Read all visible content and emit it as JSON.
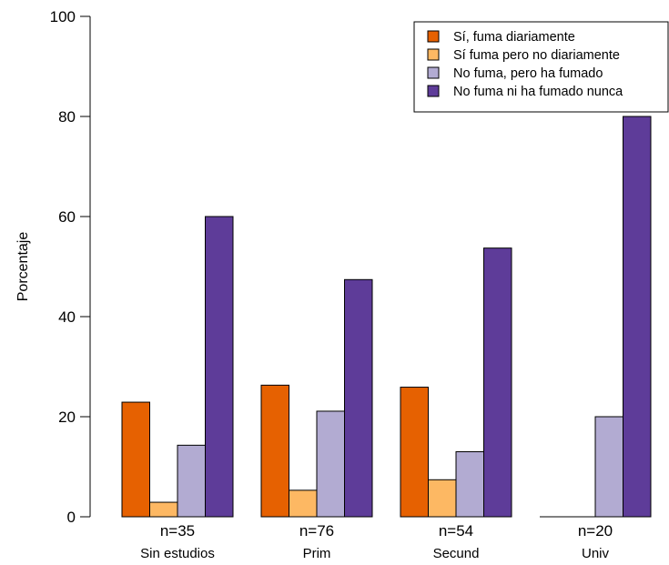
{
  "chart_data": {
    "type": "bar",
    "ylabel": "Porcentaje",
    "ylim": [
      0,
      100
    ],
    "yticks": [
      0,
      20,
      40,
      60,
      80,
      100
    ],
    "categories": [
      "Sin estudios",
      "Prim",
      "Secund",
      "Univ"
    ],
    "n_labels": [
      "n=35",
      "n=76",
      "n=54",
      "n=20"
    ],
    "series": [
      {
        "name": "Sí, fuma diariamente",
        "color": "#e66101",
        "values": [
          22.9,
          26.3,
          25.9,
          0
        ]
      },
      {
        "name": "Sí fuma pero no diariamente",
        "color": "#fdb863",
        "values": [
          2.9,
          5.3,
          7.4,
          0
        ]
      },
      {
        "name": "No fuma, pero ha fumado",
        "color": "#b2abd2",
        "values": [
          14.3,
          21.1,
          13.0,
          20.0
        ]
      },
      {
        "name": "No fuma ni ha fumado nunca",
        "color": "#5e3c99",
        "values": [
          60.0,
          47.4,
          53.7,
          80.0
        ]
      }
    ],
    "legend_position": "top-right",
    "grid": false
  }
}
